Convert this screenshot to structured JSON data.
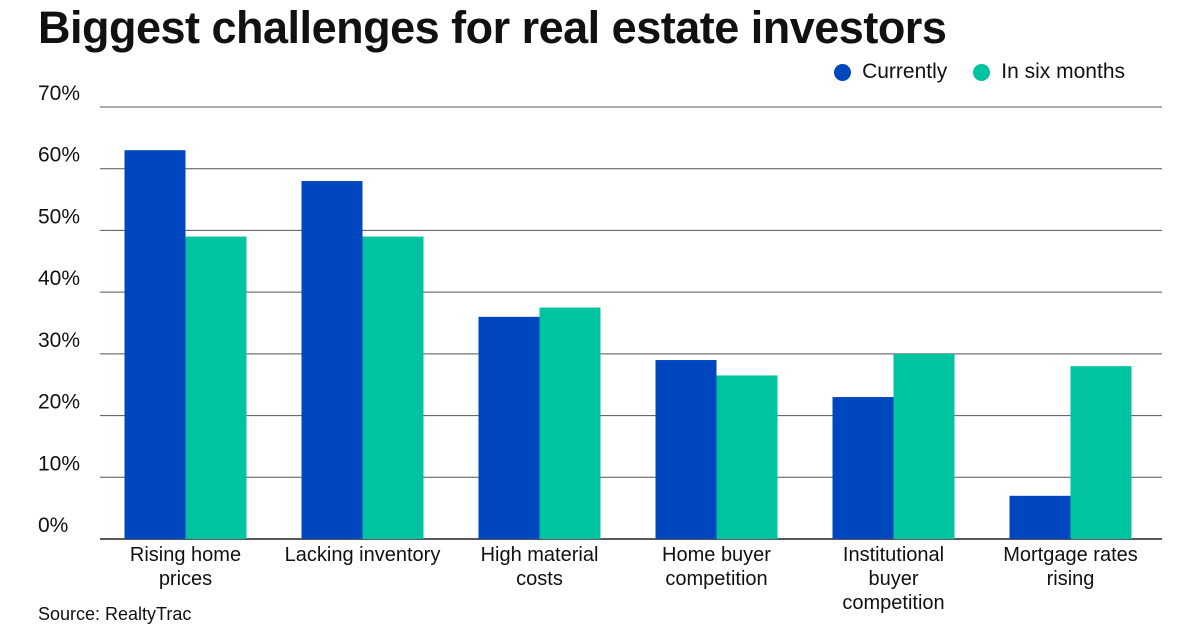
{
  "chart_data": {
    "type": "bar",
    "title": "Biggest challenges for real estate investors",
    "categories": [
      [
        "Rising home",
        "prices"
      ],
      [
        "Lacking inventory"
      ],
      [
        "High material",
        "costs"
      ],
      [
        "Home buyer",
        "competition"
      ],
      [
        "Institutional",
        "buyer",
        "competition"
      ],
      [
        "Mortgage rates",
        "rising"
      ]
    ],
    "series": [
      {
        "name": "Currently",
        "color": "#0047bf",
        "values": [
          63,
          58,
          36,
          29,
          23,
          7
        ]
      },
      {
        "name": "In six months",
        "color": "#00c3a0",
        "values": [
          49,
          49,
          37.5,
          26.5,
          30,
          28
        ]
      }
    ],
    "ylim": [
      0,
      70
    ],
    "yticks": [
      "0%",
      "10%",
      "20%",
      "30%",
      "40%",
      "50%",
      "60%",
      "70%"
    ],
    "grid": true,
    "legend_position": "top-right",
    "source": "Source: RealtyTrac"
  }
}
